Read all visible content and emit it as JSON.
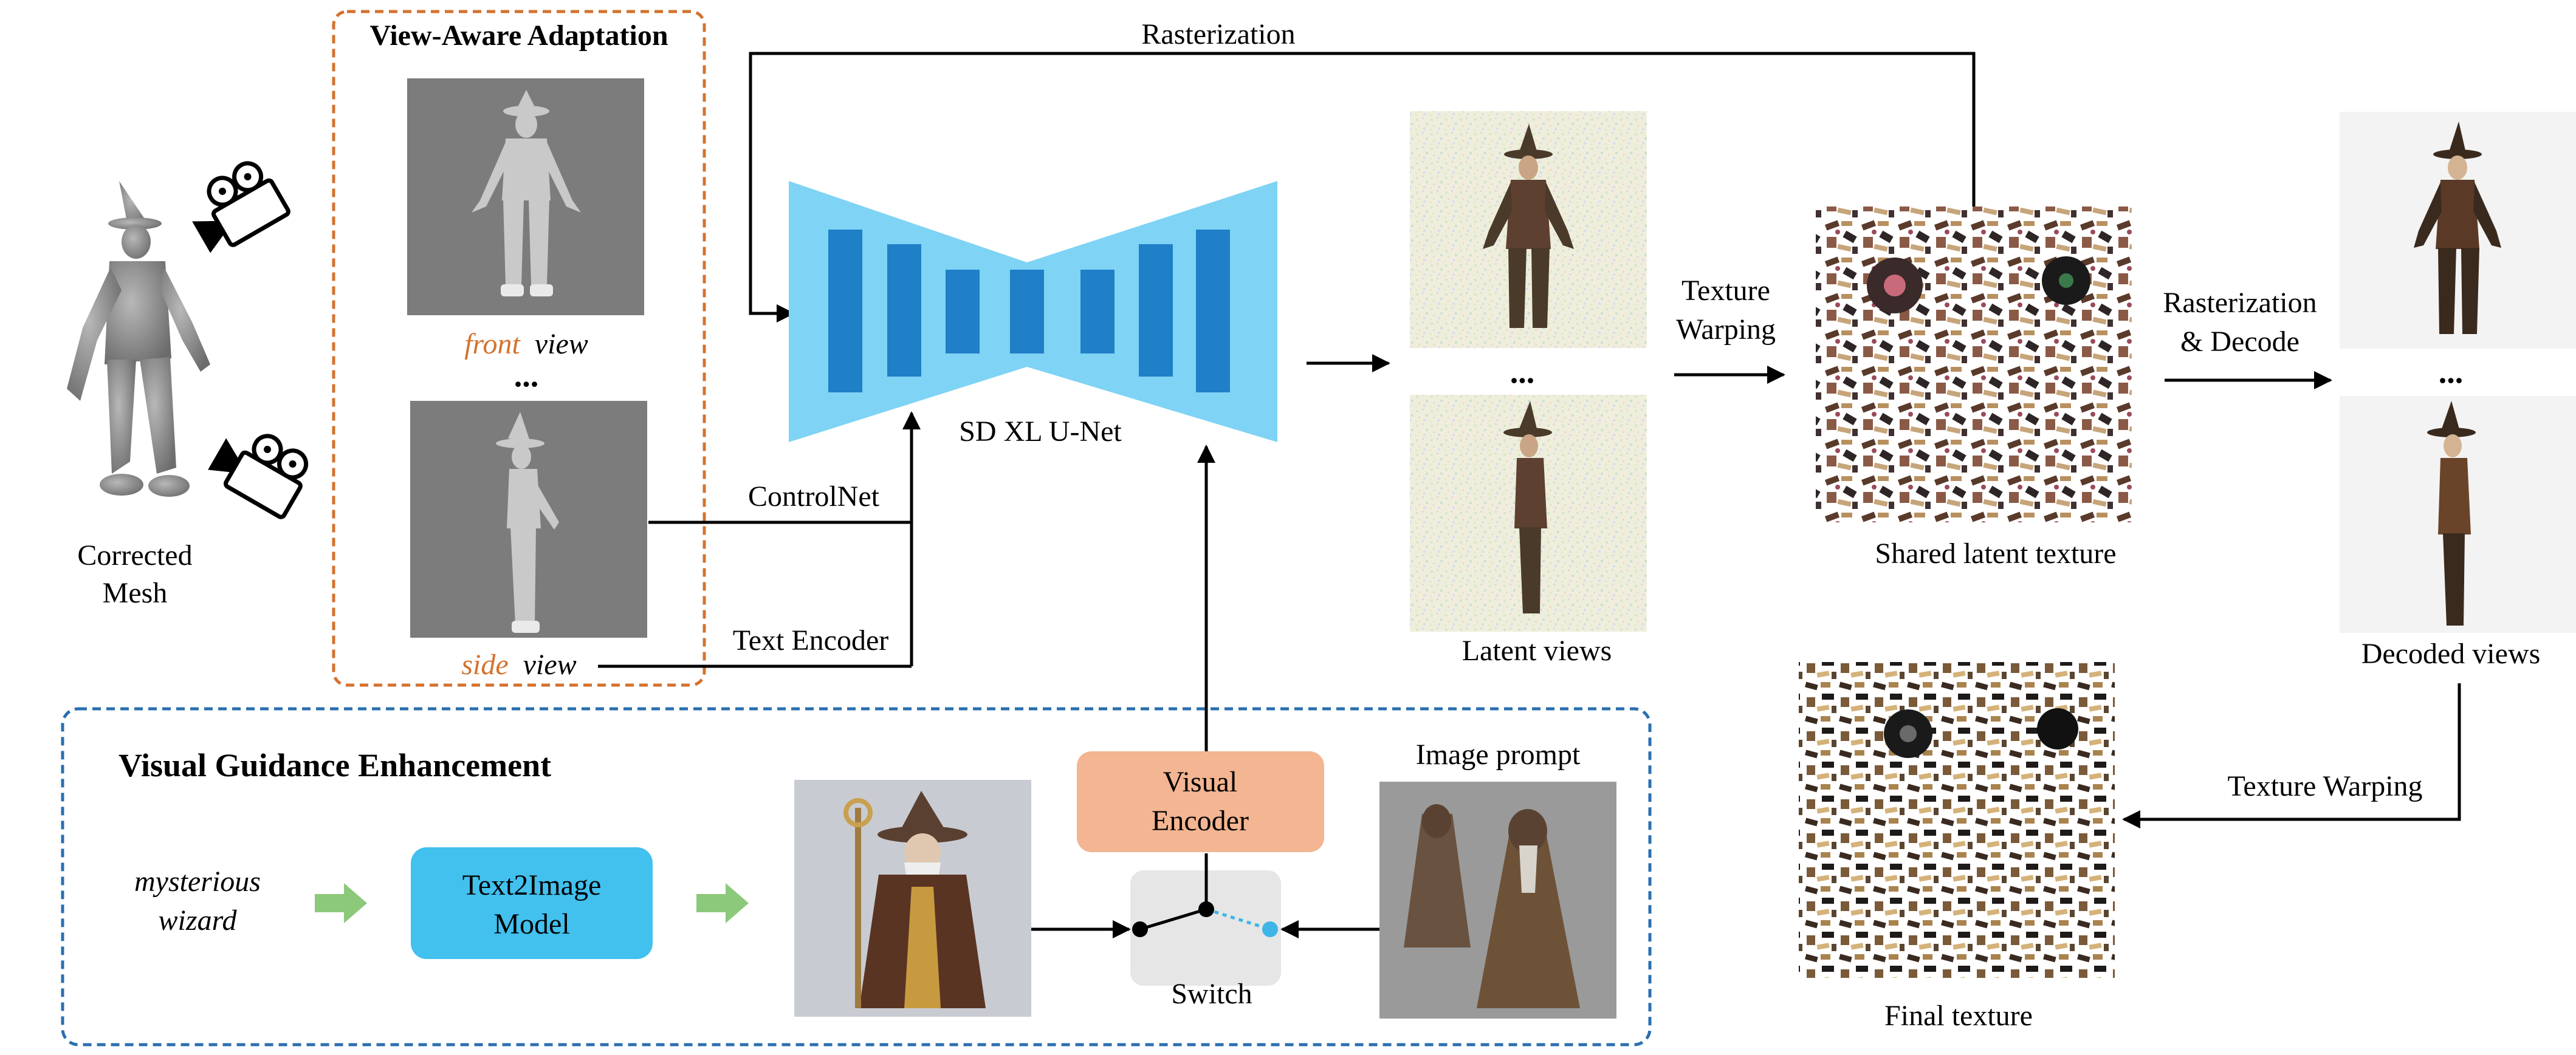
{
  "labels": {
    "view_aware_title": "View-Aware Adaptation",
    "front_word": "front",
    "front_suffix": "view",
    "ellipsis": "...",
    "side_word": "side",
    "side_suffix": "view",
    "corrected_mesh_line1": "Corrected",
    "corrected_mesh_line2": "Mesh",
    "rasterization_top": "Rasterization",
    "unet": "SD XL U-Net",
    "controlnet": "ControlNet",
    "text_encoder": "Text Encoder",
    "latent_views": "Latent views",
    "texture_warping_line1": "Texture",
    "texture_warping_line2": "Warping",
    "shared_latent_texture": "Shared latent texture",
    "rasterization_decode_line1": "Rasterization",
    "rasterization_decode_line2": "& Decode",
    "decoded_views": "Decoded views",
    "texture_warping_bottom": "Texture Warping",
    "final_texture": "Final texture",
    "visual_guidance_title": "Visual Guidance Enhancement",
    "prompt_line1": "mysterious",
    "prompt_line2": "wizard",
    "text2image_line1": "Text2Image",
    "text2image_line2": "Model",
    "visual_encoder_line1": "Visual",
    "visual_encoder_line2": "Encoder",
    "switch": "Switch",
    "image_prompt": "Image prompt"
  },
  "colors": {
    "orange_accent": "#d4722e",
    "blue_dashed": "#2a6fb0",
    "unet_light": "#7fd3f5",
    "unet_dark": "#1f7fc7",
    "text2image_box": "#42c0ee",
    "visual_encoder_box": "#f3b592",
    "green_arrow": "#8cc97a",
    "switch_box": "#e6e6e6",
    "switch_dot": "#3db5e6"
  },
  "icons": {
    "camera_top": "video-camera-icon",
    "camera_bottom": "video-camera-icon",
    "green_arrow": "arrow-right-icon"
  }
}
